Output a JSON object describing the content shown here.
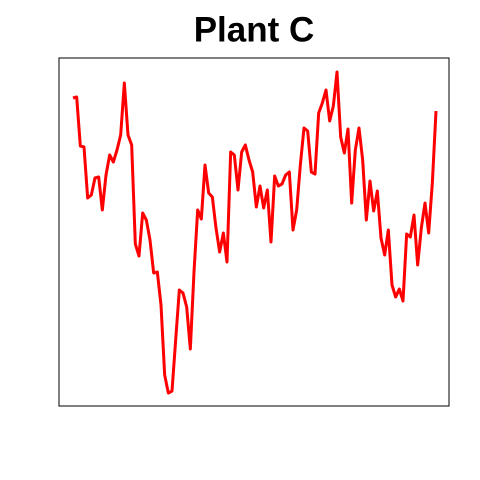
{
  "chart_data": {
    "type": "line",
    "title": "Plant C",
    "color": "#ff0000",
    "ylim": [
      0,
      348
    ],
    "values": [
      308,
      309,
      260,
      259,
      208,
      211,
      228,
      229,
      196,
      231,
      251,
      244,
      256,
      271,
      323,
      271,
      261,
      162,
      150,
      193,
      186,
      166,
      133,
      134,
      101,
      31,
      13,
      15,
      66,
      116,
      113,
      99,
      57,
      134,
      196,
      187,
      241,
      213,
      209,
      178,
      154,
      173,
      144,
      254,
      251,
      216,
      254,
      261,
      246,
      234,
      199,
      220,
      198,
      216,
      164,
      230,
      220,
      222,
      231,
      234,
      176,
      196,
      241,
      278,
      275,
      234,
      232,
      293,
      303,
      316,
      285,
      300,
      334,
      269,
      253,
      277,
      203,
      256,
      278,
      246,
      186,
      225,
      195,
      215,
      168,
      151,
      176,
      121,
      109,
      117,
      105,
      172,
      169,
      191,
      141,
      178,
      203,
      173,
      223,
      295
    ]
  }
}
